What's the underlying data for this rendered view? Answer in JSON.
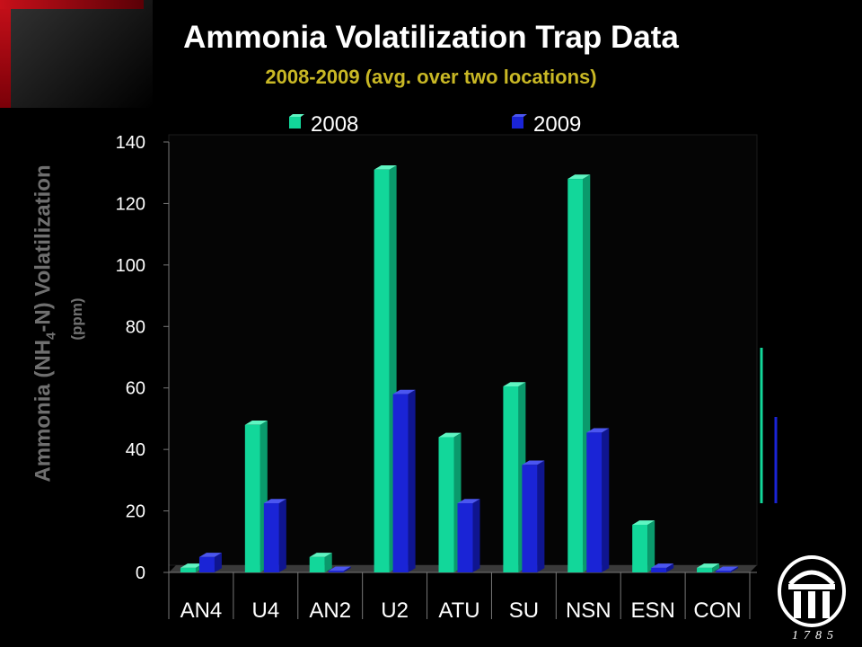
{
  "title": "Ammonia Volatilization Trap Data",
  "subtitle": "2008-2009 (avg. over two locations)",
  "ylabel": {
    "main": "Ammonia (NH",
    "sub": "4",
    "rest": "-N) Volatilization",
    "unit": "(ppm)"
  },
  "logo": {
    "year": "1785"
  },
  "colors": {
    "s2008": "#12d79a",
    "s2009": "#1a24d6"
  },
  "chart_data": {
    "type": "bar",
    "title": "Ammonia Volatilization Trap Data",
    "subtitle": "2008-2009 (avg. over two locations)",
    "ylabel": "Ammonia (NH4-N) Volatilization (ppm)",
    "xlabel": "",
    "ylim": [
      0,
      140
    ],
    "yticks": [
      0,
      20,
      40,
      60,
      80,
      100,
      120,
      140
    ],
    "grid": false,
    "legend": "top",
    "categories": [
      "AN4",
      "U4",
      "AN2",
      "U2",
      "ATU",
      "SU",
      "NSN",
      "ESN",
      "CON"
    ],
    "series": [
      {
        "name": "2008",
        "values": [
          1.5,
          48,
          5,
          131,
          44,
          60.5,
          128,
          15.5,
          1.5
        ]
      },
      {
        "name": "2009",
        "values": [
          5,
          22.5,
          0.5,
          58,
          22.5,
          35,
          45.5,
          1.5,
          0.5
        ]
      }
    ]
  }
}
